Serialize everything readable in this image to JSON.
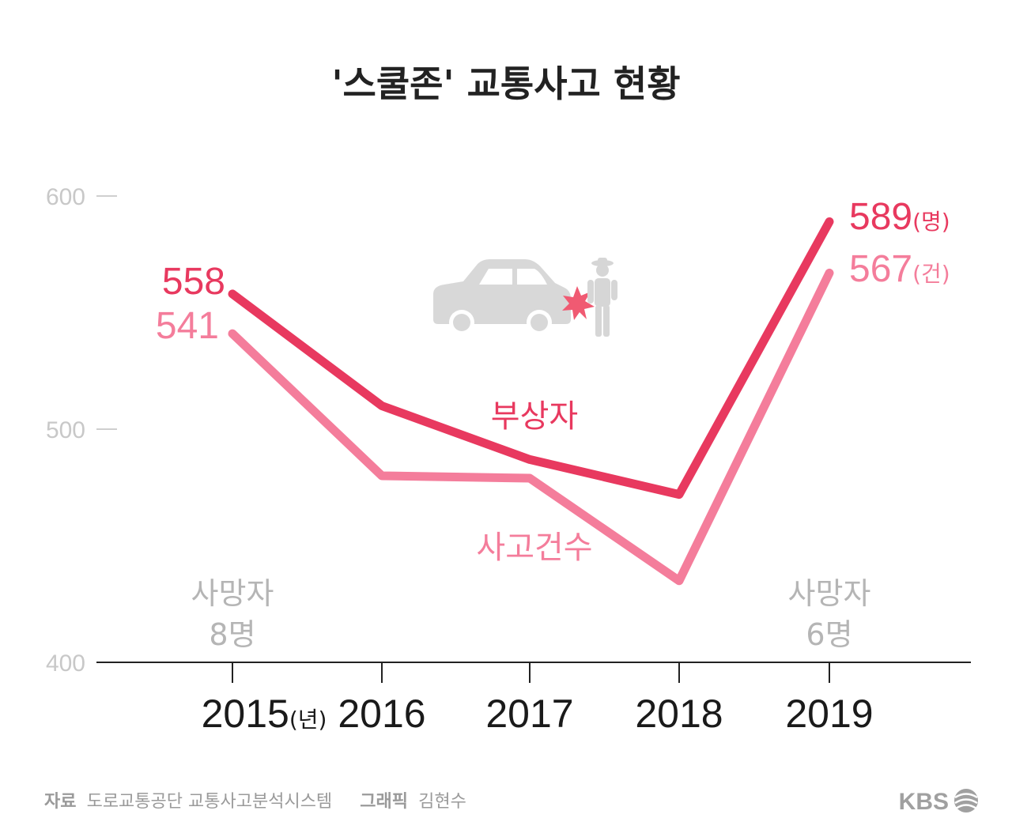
{
  "title": "'스쿨존' 교통사고 현황",
  "chart_data": {
    "type": "line",
    "categories": [
      "2015",
      "2016",
      "2017",
      "2018",
      "2019"
    ],
    "x_unit": "(년)",
    "ylim": [
      400,
      600
    ],
    "yticks": [
      400,
      500,
      600
    ],
    "grid": false,
    "series": [
      {
        "name": "부상자",
        "values": [
          558,
          510,
          487,
          472,
          589
        ],
        "color": "#e8395f",
        "end_label_unit": "(명)"
      },
      {
        "name": "사고건수",
        "values": [
          541,
          480,
          479,
          435,
          567
        ],
        "color": "#f47d9b",
        "end_label_unit": "(건)"
      }
    ],
    "annotations": {
      "start": {
        "line1": "사망자",
        "line2": "8명"
      },
      "end": {
        "line1": "사망자",
        "line2": "6명"
      }
    }
  },
  "icon": "car-pedestrian-crash-icon",
  "footer": {
    "source_label": "자료",
    "source_text": "도로교통공단 교통사고분석시스템",
    "graphic_label": "그래픽",
    "graphic_text": "김현수",
    "logo": "KBS"
  }
}
